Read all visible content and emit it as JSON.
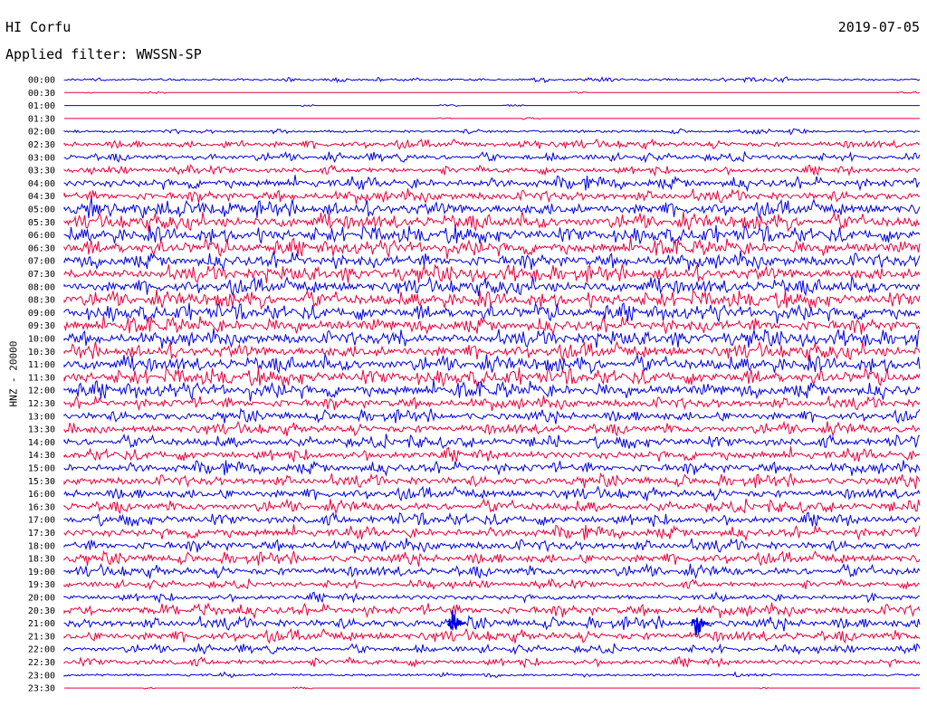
{
  "header": {
    "station": "HI Corfu",
    "date": "2019-07-05",
    "filter": "Applied filter: WWSSN-SP"
  },
  "chart_data": {
    "type": "line",
    "title": "HI Corfu",
    "subtitle": "Applied filter: WWSSN-SP",
    "date": "2019-07-05",
    "ylabel": "HNZ - 20000",
    "colors": [
      "#0000e0",
      "#e8003c"
    ],
    "rows": [
      {
        "time": "00:00",
        "amp": 1
      },
      {
        "time": "00:30",
        "amp": 0
      },
      {
        "time": "01:00",
        "amp": 0
      },
      {
        "time": "01:30",
        "amp": 0
      },
      {
        "time": "02:00",
        "amp": 1
      },
      {
        "time": "02:30",
        "amp": 2
      },
      {
        "time": "03:00",
        "amp": 2
      },
      {
        "time": "03:30",
        "amp": 2
      },
      {
        "time": "04:00",
        "amp": 3
      },
      {
        "time": "04:30",
        "amp": 3
      },
      {
        "time": "05:00",
        "amp": 4
      },
      {
        "time": "05:30",
        "amp": 4
      },
      {
        "time": "06:00",
        "amp": 4
      },
      {
        "time": "06:30",
        "amp": 4
      },
      {
        "time": "07:00",
        "amp": 4
      },
      {
        "time": "07:30",
        "amp": 4
      },
      {
        "time": "08:00",
        "amp": 4
      },
      {
        "time": "08:30",
        "amp": 4
      },
      {
        "time": "09:00",
        "amp": 4
      },
      {
        "time": "09:30",
        "amp": 4
      },
      {
        "time": "10:00",
        "amp": 4
      },
      {
        "time": "10:30",
        "amp": 4
      },
      {
        "time": "11:00",
        "amp": 4
      },
      {
        "time": "11:30",
        "amp": 4
      },
      {
        "time": "12:00",
        "amp": 4
      },
      {
        "time": "12:30",
        "amp": 3
      },
      {
        "time": "13:00",
        "amp": 3
      },
      {
        "time": "13:30",
        "amp": 3
      },
      {
        "time": "14:00",
        "amp": 3
      },
      {
        "time": "14:30",
        "amp": 3
      },
      {
        "time": "15:00",
        "amp": 3
      },
      {
        "time": "15:30",
        "amp": 3
      },
      {
        "time": "16:00",
        "amp": 3
      },
      {
        "time": "16:30",
        "amp": 3
      },
      {
        "time": "17:00",
        "amp": 3
      },
      {
        "time": "17:30",
        "amp": 3
      },
      {
        "time": "18:00",
        "amp": 3
      },
      {
        "time": "18:30",
        "amp": 3
      },
      {
        "time": "19:00",
        "amp": 3
      },
      {
        "time": "19:30",
        "amp": 2
      },
      {
        "time": "20:00",
        "amp": 2
      },
      {
        "time": "20:30",
        "amp": 3
      },
      {
        "time": "21:00",
        "amp": 3
      },
      {
        "time": "21:30",
        "amp": 3
      },
      {
        "time": "22:00",
        "amp": 2
      },
      {
        "time": "22:30",
        "amp": 2
      },
      {
        "time": "23:00",
        "amp": 1
      },
      {
        "time": "23:30",
        "amp": 0
      }
    ],
    "events": [
      {
        "time": "21:00",
        "x_frac": 0.455,
        "strength": 5
      },
      {
        "time": "21:00",
        "x_frac": 0.74,
        "strength": 5
      }
    ]
  }
}
